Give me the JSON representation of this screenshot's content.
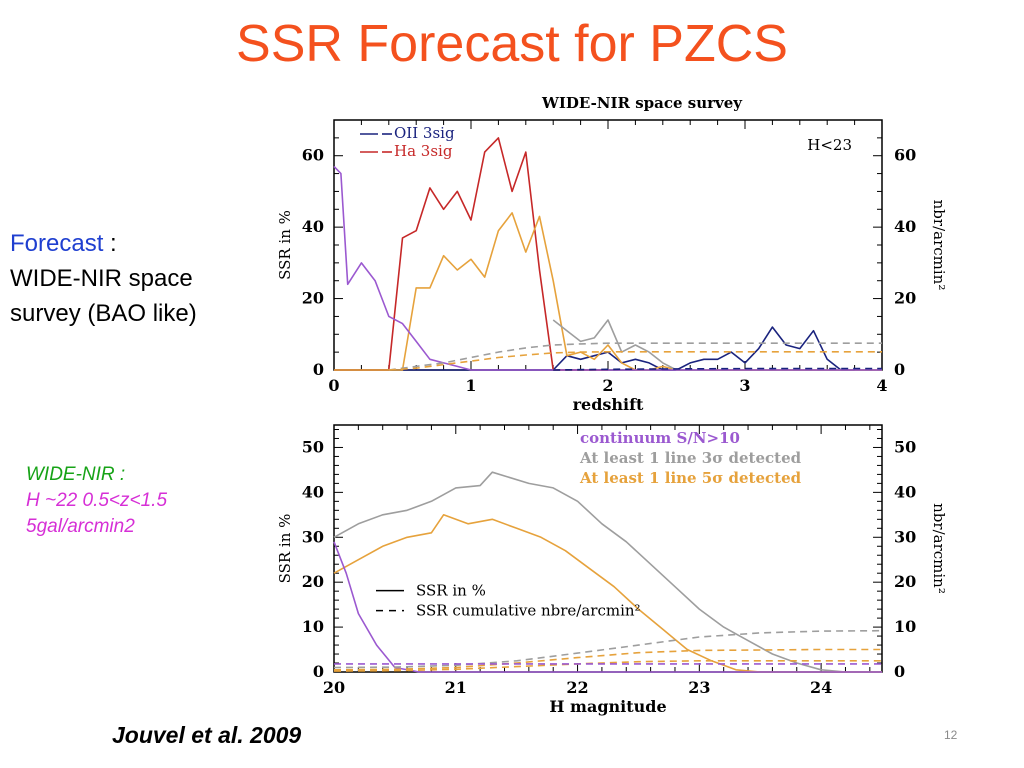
{
  "slide": {
    "title": "SSR Forecast for PZCS",
    "forecast_keyword": "Forecast",
    "forecast_colon": " :",
    "forecast_line2": "WIDE-NIR space",
    "forecast_line3": "survey (BAO like)",
    "note_line1": "WIDE-NIR :",
    "note_line2": "H ~22 0.5<z<1.5",
    "note_line3": "5gal/arcmin2",
    "credit": "Jouvel et al. 2009",
    "page_number": "12",
    "colors": {
      "title": "#f4511e",
      "keyword": "#1f3fd0",
      "note_green": "#17a317",
      "note_magenta": "#d62fd6"
    }
  },
  "chart_data": [
    {
      "type": "line",
      "title": "WIDE-NIR space survey",
      "xlabel": "redshift",
      "ylabel": "SSR in %",
      "ylabel_right": "nbr/arcmin²",
      "annotation": "H<23",
      "xlim": [
        0,
        4
      ],
      "ylim": [
        0,
        70
      ],
      "xticks": [
        0,
        1,
        2,
        3,
        4
      ],
      "yticks": [
        0,
        20,
        40,
        60
      ],
      "legend": [
        {
          "label": "OII  3sig",
          "color": "#1a237e"
        },
        {
          "label": "Ha  3sig",
          "color": "#c62828"
        }
      ],
      "series": [
        {
          "name": "OII  3sig",
          "color": "#1a237e",
          "dash": false,
          "x": [
            0.4,
            0.5,
            1.6,
            1.7,
            1.8,
            1.9,
            2.0,
            2.1,
            2.2,
            2.3,
            2.4,
            2.5,
            2.6,
            2.7,
            2.8,
            2.9,
            3.0,
            3.1,
            3.2,
            3.3,
            3.4,
            3.5,
            3.6,
            3.7,
            3.8
          ],
          "y": [
            0,
            0,
            0,
            4,
            3,
            4,
            5,
            2,
            3,
            2,
            0,
            0,
            2,
            3,
            3,
            5,
            2,
            6,
            12,
            7,
            6,
            11,
            3,
            0,
            0
          ]
        },
        {
          "name": "Ha  3sig",
          "color": "#c62828",
          "dash": false,
          "x": [
            0,
            0.4,
            0.5,
            0.6,
            0.7,
            0.8,
            0.9,
            1.0,
            1.1,
            1.2,
            1.3,
            1.4,
            1.5,
            1.6,
            1.65,
            2.0
          ],
          "y": [
            0,
            0,
            37,
            39,
            51,
            45,
            50,
            42,
            61,
            65,
            50,
            61,
            28,
            0,
            0,
            0
          ]
        },
        {
          "name": "",
          "color": "#e6a23c",
          "dash": false,
          "x": [
            0,
            0.4,
            0.5,
            0.6,
            0.7,
            0.8,
            0.9,
            1.0,
            1.1,
            1.2,
            1.3,
            1.4,
            1.5,
            1.6,
            1.7,
            1.8,
            1.9,
            2.0,
            2.1,
            2.2,
            2.3,
            2.4,
            2.5,
            3.0,
            4.0
          ],
          "y": [
            0,
            0,
            0,
            23,
            23,
            32,
            28,
            31,
            26,
            39,
            44,
            33,
            43,
            25,
            4,
            5,
            3,
            7,
            2,
            0,
            0,
            1,
            0,
            0,
            0
          ]
        },
        {
          "name": "",
          "color": "#9e9e9e",
          "dash": false,
          "x": [
            1.6,
            1.7,
            1.8,
            1.9,
            2.0,
            2.1,
            2.2,
            2.3,
            2.4,
            2.5,
            2.6,
            2.7
          ],
          "y": [
            14,
            11,
            8,
            9,
            14,
            5,
            7,
            5,
            2,
            0,
            0,
            0
          ]
        },
        {
          "name": "",
          "color": "#9b59d0",
          "dash": false,
          "x": [
            0,
            0.05,
            0.1,
            0.2,
            0.3,
            0.4,
            0.5,
            0.6,
            0.7,
            0.8,
            0.9,
            1.0,
            1.1,
            1.2,
            1.5,
            2.0,
            4.0
          ],
          "y": [
            57,
            55,
            24,
            30,
            25,
            15,
            13,
            8,
            3,
            2,
            1,
            0,
            0,
            0,
            0,
            0,
            0
          ]
        },
        {
          "name": "",
          "color": "#9e9e9e",
          "dash": true,
          "x": [
            0.4,
            0.6,
            0.8,
            1.0,
            1.2,
            1.4,
            1.6,
            1.8,
            2.0,
            2.5,
            3.0,
            4.0
          ],
          "y": [
            0,
            1,
            2,
            3.5,
            5,
            6.2,
            7,
            7.3,
            7.5,
            7.5,
            7.5,
            7.5
          ]
        },
        {
          "name": "",
          "color": "#e6a23c",
          "dash": true,
          "x": [
            0.4,
            0.6,
            0.8,
            1.0,
            1.2,
            1.4,
            1.6,
            1.8,
            2.0,
            2.5,
            3.0,
            4.0
          ],
          "y": [
            0,
            0.5,
            1.5,
            2.5,
            3.5,
            4.2,
            4.8,
            5,
            5.1,
            5.1,
            5.1,
            5.1
          ]
        },
        {
          "name": "",
          "color": "#1a237e",
          "dash": true,
          "x": [
            1.6,
            2.0,
            2.5,
            3.0,
            3.5,
            4.0
          ],
          "y": [
            0,
            0.2,
            0.3,
            0.4,
            0.4,
            0.4
          ]
        }
      ]
    },
    {
      "type": "line",
      "xlabel": "H magnitude",
      "ylabel": "SSR in %",
      "ylabel_right": "nbr/arcmin²",
      "xlim": [
        20,
        24.5
      ],
      "ylim": [
        0,
        55
      ],
      "xticks": [
        20,
        21,
        22,
        23,
        24
      ],
      "yticks": [
        0,
        10,
        20,
        30,
        40,
        50
      ],
      "legend": [
        {
          "label": "continuum S/N>10",
          "color": "#9b59d0"
        },
        {
          "label": "At least 1 line 3σ detected",
          "color": "#9e9e9e"
        },
        {
          "label": "At least 1 line 5σ detected",
          "color": "#e6a23c"
        }
      ],
      "style_legend": [
        {
          "label": "SSR in %",
          "dash": false
        },
        {
          "label": "SSR cumulative nbre/arcmin²",
          "dash": true
        }
      ],
      "series": [
        {
          "name": "At least 1 line 3σ detected",
          "color": "#9e9e9e",
          "dash": false,
          "x": [
            20,
            20.2,
            20.4,
            20.6,
            20.8,
            21.0,
            21.2,
            21.3,
            21.6,
            21.8,
            22.0,
            22.2,
            22.4,
            22.6,
            22.8,
            23.0,
            23.2,
            23.4,
            23.6,
            23.8,
            24.0,
            24.2,
            24.5
          ],
          "y": [
            30,
            33,
            35,
            36,
            38,
            41,
            41.5,
            44.5,
            42,
            41,
            38,
            33,
            29,
            24,
            19,
            14,
            10,
            7,
            4,
            2,
            0.5,
            0,
            0
          ]
        },
        {
          "name": "At least 1 line 5σ detected",
          "color": "#e6a23c",
          "dash": false,
          "x": [
            20,
            20.2,
            20.4,
            20.6,
            20.8,
            20.9,
            21.1,
            21.3,
            21.5,
            21.7,
            21.9,
            22.1,
            22.3,
            22.5,
            22.7,
            22.9,
            23.1,
            23.3,
            23.5,
            23.7,
            24.0,
            24.5
          ],
          "y": [
            22,
            25,
            28,
            30,
            31,
            35,
            33,
            34,
            32,
            30,
            27,
            23,
            19,
            14,
            9.5,
            5,
            2.5,
            0.5,
            0,
            0,
            0,
            0
          ]
        },
        {
          "name": "continuum S/N>10",
          "color": "#9b59d0",
          "dash": false,
          "x": [
            20,
            20.1,
            20.2,
            20.35,
            20.5,
            20.7,
            21.0,
            22.0,
            24.5
          ],
          "y": [
            29,
            22,
            13,
            6,
            1,
            0,
            0,
            0,
            0
          ]
        },
        {
          "name": "",
          "color": "#9e9e9e",
          "dash": true,
          "x": [
            20,
            20.5,
            21.0,
            21.5,
            22.0,
            22.5,
            23.0,
            23.5,
            24.0,
            24.5
          ],
          "y": [
            1,
            1.1,
            1.5,
            2.5,
            4.2,
            6,
            7.8,
            8.7,
            9.1,
            9.2
          ]
        },
        {
          "name": "",
          "color": "#e6a23c",
          "dash": true,
          "x": [
            20,
            20.5,
            21.0,
            21.5,
            22.0,
            22.5,
            23.0,
            23.5,
            24.0,
            24.5
          ],
          "y": [
            0.5,
            0.6,
            1,
            2,
            3.2,
            4.3,
            4.8,
            4.9,
            5,
            5
          ]
        },
        {
          "name": "",
          "color": "#e6a23c",
          "dash": true,
          "x": [
            20,
            20.5,
            21.0,
            21.5,
            22.0,
            22.5,
            23.0,
            23.5,
            24.0,
            24.5
          ],
          "y": [
            0.2,
            0.3,
            0.6,
            1.2,
            1.8,
            2.3,
            2.5,
            2.5,
            2.5,
            2.5
          ]
        },
        {
          "name": "",
          "color": "#9b59d0",
          "dash": true,
          "x": [
            20,
            24.5
          ],
          "y": [
            1.8,
            1.8
          ]
        }
      ]
    }
  ]
}
